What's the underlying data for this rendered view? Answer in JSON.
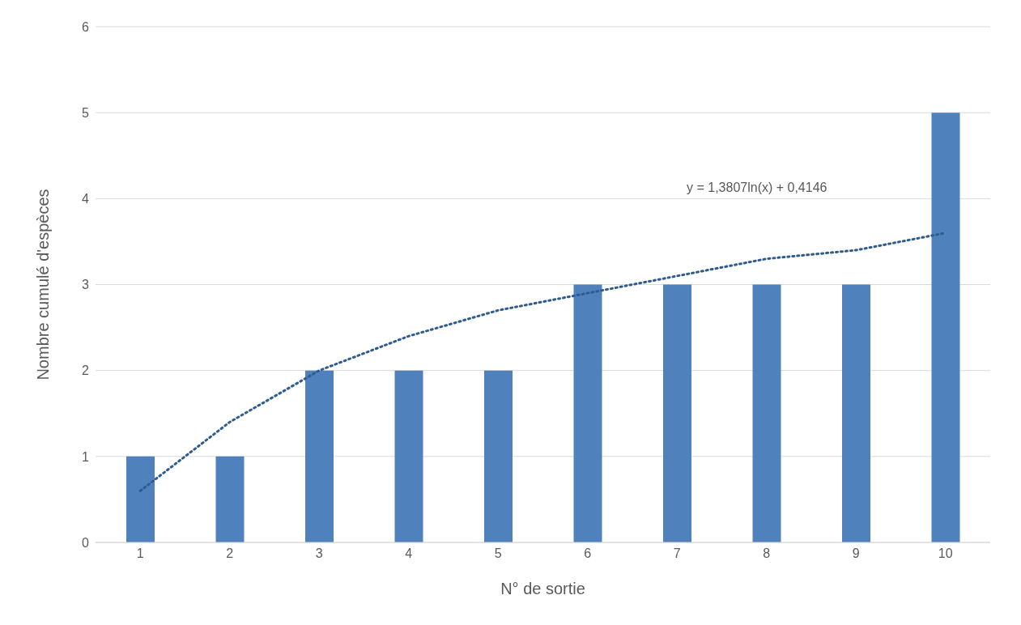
{
  "chart_data": {
    "type": "bar",
    "xlabel": "N° de sortie",
    "ylabel": "Nombre cumulé d'espèces",
    "categories": [
      "1",
      "2",
      "3",
      "4",
      "5",
      "6",
      "7",
      "8",
      "9",
      "10"
    ],
    "series": [
      {
        "color": "#4f81bd",
        "values": [
          1,
          1,
          2,
          2,
          2,
          3,
          3,
          3,
          3,
          5
        ]
      },
      {
        "type": "line",
        "color": "#2e5c8f",
        "line_style": "dotted",
        "marker": "none",
        "values": [
          0.6,
          1.4,
          2.0,
          2.4,
          2.7,
          2.9,
          3.1,
          3.3,
          3.4,
          3.6
        ]
      }
    ],
    "annotations": [
      "y = 1,3807ln(x) + 0,4146"
    ],
    "ylim": [
      0,
      6
    ],
    "yticks": [
      0,
      1,
      2,
      3,
      4,
      5,
      6
    ],
    "grid": "y"
  }
}
